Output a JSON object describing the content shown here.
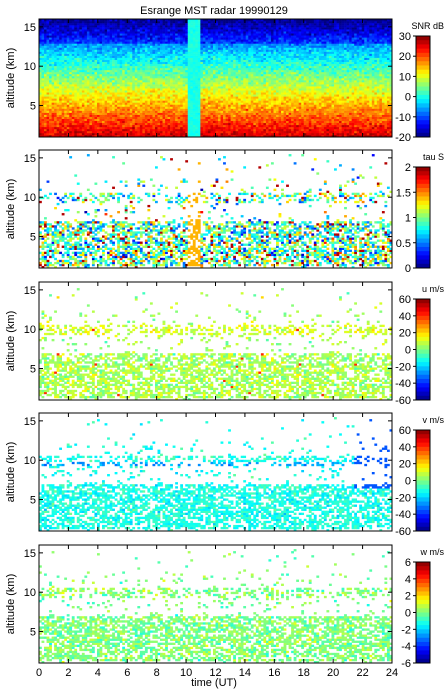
{
  "title": "Esrange MST radar 19990129",
  "chart_data": {
    "type": "heatmap",
    "title": "Esrange MST radar 19990129",
    "xlabel": "time (UT)",
    "xlim": [
      0,
      24
    ],
    "x_ticks": [
      "0",
      "2",
      "4",
      "6",
      "8",
      "10",
      "12",
      "14",
      "16",
      "18",
      "20",
      "22",
      "24"
    ],
    "x_tick_values": [
      0,
      2,
      4,
      6,
      8,
      10,
      12,
      14,
      16,
      18,
      20,
      22,
      24
    ],
    "panels": [
      {
        "id": "snr",
        "ylabel": "altitude (km)",
        "ylim": [
          1,
          16
        ],
        "y_ticks": [
          "5",
          "10",
          "15"
        ],
        "y_tick_values": [
          5,
          10,
          15
        ],
        "colorbar_label": "SNR dB",
        "clim": [
          -20,
          30
        ],
        "colorbar_ticks": [
          "30",
          "20",
          "10",
          "0",
          "-10",
          "-20"
        ],
        "colorbar_tick_values": [
          30,
          20,
          10,
          0,
          -10,
          -20
        ],
        "field": "snr"
      },
      {
        "id": "tau",
        "ylabel": "altitude (km)",
        "ylim": [
          1,
          16
        ],
        "y_ticks": [
          "5",
          "10",
          "15"
        ],
        "y_tick_values": [
          5,
          10,
          15
        ],
        "colorbar_label": "tau S",
        "clim": [
          0,
          2
        ],
        "colorbar_ticks": [
          "2",
          "1.5",
          "1",
          "0.5",
          "0"
        ],
        "colorbar_tick_values": [
          2,
          1.5,
          1,
          0.5,
          0
        ],
        "field": "tau"
      },
      {
        "id": "u",
        "ylabel": "altitude (km)",
        "ylim": [
          1,
          16
        ],
        "y_ticks": [
          "5",
          "10",
          "15"
        ],
        "y_tick_values": [
          5,
          10,
          15
        ],
        "colorbar_label": "u m/s",
        "clim": [
          -60,
          60
        ],
        "colorbar_ticks": [
          "60",
          "40",
          "20",
          "0",
          "-20",
          "-40",
          "-60"
        ],
        "colorbar_tick_values": [
          60,
          40,
          20,
          0,
          -20,
          -40,
          -60
        ],
        "field": "u"
      },
      {
        "id": "v",
        "ylabel": "altitude (km)",
        "ylim": [
          1,
          16
        ],
        "y_ticks": [
          "5",
          "10",
          "15"
        ],
        "y_tick_values": [
          5,
          10,
          15
        ],
        "colorbar_label": "v m/s",
        "clim": [
          -60,
          60
        ],
        "colorbar_ticks": [
          "60",
          "40",
          "20",
          "0",
          "-20",
          "-40",
          "-60"
        ],
        "colorbar_tick_values": [
          60,
          40,
          20,
          0,
          -20,
          -40,
          -60
        ],
        "field": "v"
      },
      {
        "id": "w",
        "ylabel": "altitude (km)",
        "ylim": [
          1,
          16
        ],
        "y_ticks": [
          "5",
          "10",
          "15"
        ],
        "y_tick_values": [
          5,
          10,
          15
        ],
        "colorbar_label": "w m/s",
        "clim": [
          -6,
          6
        ],
        "colorbar_ticks": [
          "6",
          "4",
          "2",
          "0",
          "-2",
          "-4",
          "-6"
        ],
        "colorbar_tick_values": [
          6,
          4,
          2,
          0,
          -2,
          -4,
          -6
        ],
        "field": "w"
      }
    ],
    "grid": false,
    "colormap": "jet",
    "approx_levels": {
      "snr_near_surface": 25,
      "snr_at_10km": 5,
      "snr_at_15km": -12,
      "tau_typical": 0.9,
      "u_typical": 5,
      "v_typical": -12,
      "v_tropopause_layer": -25,
      "w_typical": 0
    },
    "data_gap_x_range": [
      10.2,
      10.9
    ]
  }
}
